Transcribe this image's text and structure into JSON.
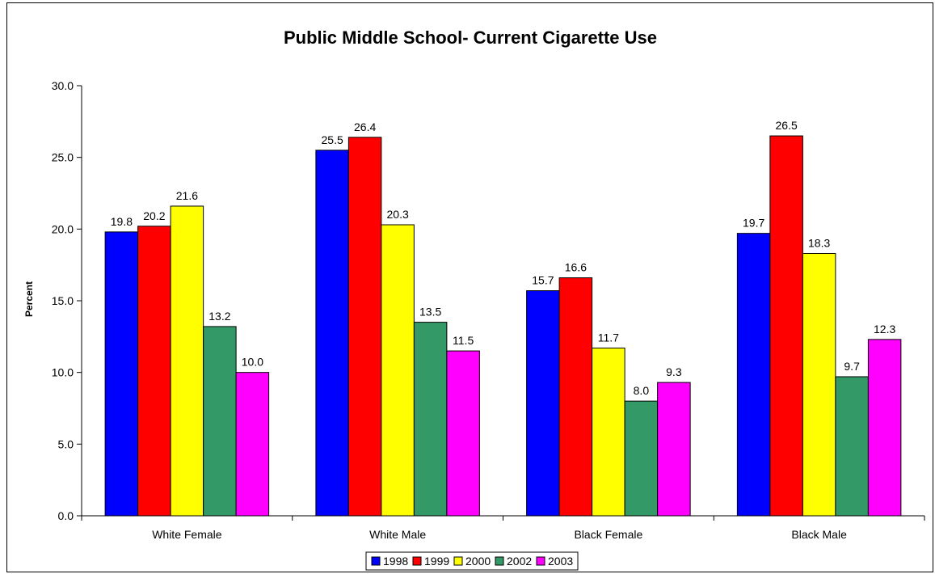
{
  "chart_data": {
    "type": "bar",
    "title": "Public Middle School- Current Cigarette Use",
    "xlabel": "",
    "ylabel": "Percent",
    "ylim": [
      0,
      30
    ],
    "yticks": [
      "0.0",
      "5.0",
      "10.0",
      "15.0",
      "20.0",
      "25.0",
      "30.0"
    ],
    "categories": [
      "White Female",
      "White Male",
      "Black Female",
      "Black Male"
    ],
    "series": [
      {
        "name": "1998",
        "color": "#0000FF",
        "values": [
          19.8,
          25.5,
          15.7,
          19.7
        ]
      },
      {
        "name": "1999",
        "color": "#FF0000",
        "values": [
          20.2,
          26.4,
          16.6,
          26.5
        ]
      },
      {
        "name": "2000",
        "color": "#FFFF00",
        "values": [
          21.6,
          20.3,
          11.7,
          18.3
        ]
      },
      {
        "name": "2002",
        "color": "#339966",
        "values": [
          13.2,
          13.5,
          8.0,
          9.7
        ]
      },
      {
        "name": "2003",
        "color": "#FF00FF",
        "values": [
          10.0,
          11.5,
          9.3,
          12.3
        ]
      }
    ],
    "grid": false,
    "legend": "bottom-center",
    "data_labels": true
  }
}
